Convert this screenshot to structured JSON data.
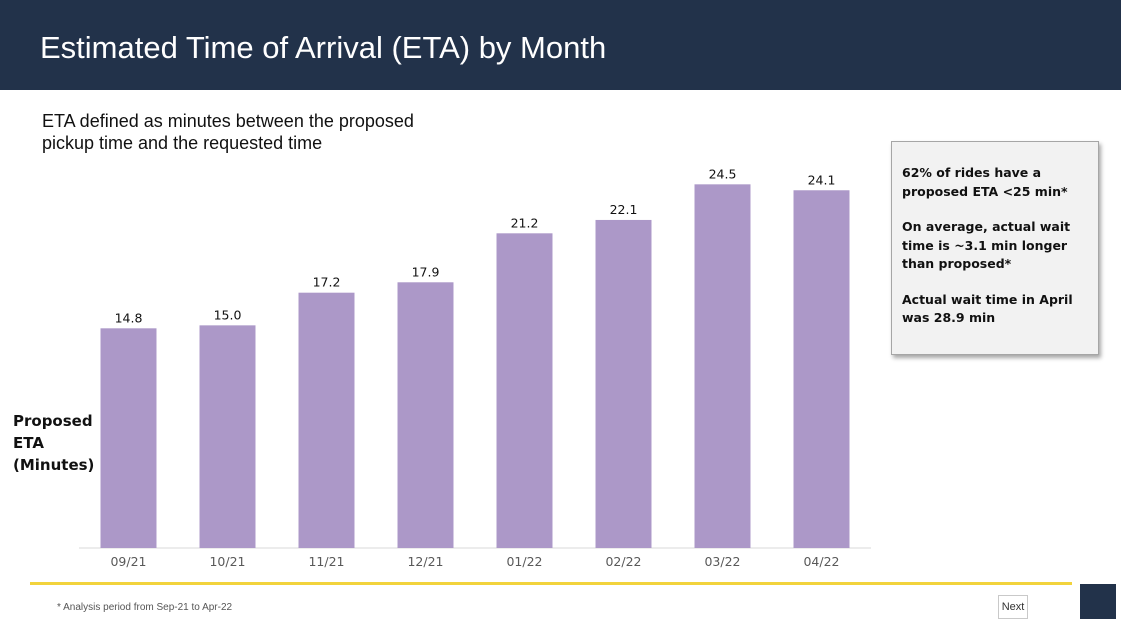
{
  "header": {
    "title": "Estimated Time of Arrival (ETA) by Month"
  },
  "subtitle": {
    "line1": "ETA defined as minutes between the proposed",
    "line2": "pickup time and the requested time"
  },
  "chart_data": {
    "type": "bar",
    "title": "Estimated Time of Arrival (ETA) by Month",
    "categories": [
      "09/21",
      "10/21",
      "11/21",
      "12/21",
      "01/22",
      "02/22",
      "03/22",
      "04/22"
    ],
    "values": [
      14.8,
      15.0,
      17.2,
      17.9,
      21.2,
      22.1,
      24.5,
      24.1
    ],
    "value_labels": [
      "14.8",
      "15.0",
      "17.2",
      "17.9",
      "21.2",
      "22.1",
      "24.5",
      "24.1"
    ],
    "xlabel": "",
    "ylabel_lines": [
      "Proposed",
      "ETA",
      "(Minutes)"
    ],
    "ylim": [
      0,
      25.6
    ],
    "grid": false,
    "bar_color": "#ac98c8"
  },
  "callout": {
    "para1": "62% of rides have a proposed ETA <25 min*",
    "para2": "On average, actual wait time is ~3.1 min longer than proposed*",
    "para3": "Actual wait time in April was 28.9 min"
  },
  "footer": {
    "footnote": "* Analysis period from Sep-21 to Apr-22",
    "next_label": "Next",
    "accent_color": "#f2d33c"
  },
  "colors": {
    "header_bg": "#22324a"
  }
}
